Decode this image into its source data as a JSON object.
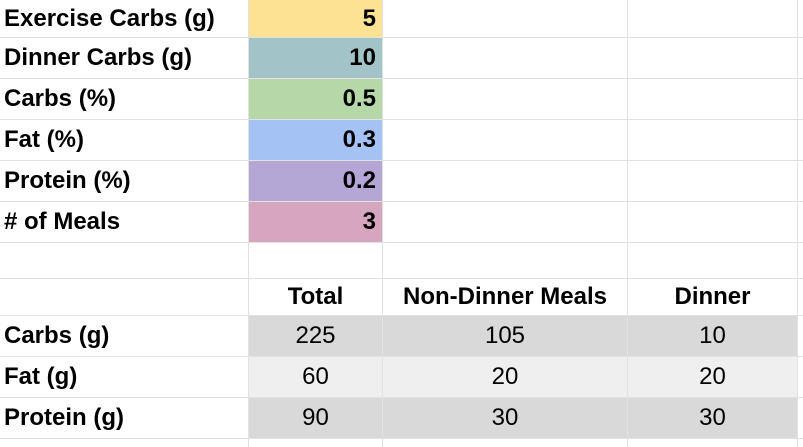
{
  "params": [
    {
      "label": "Exercise Carbs (g)",
      "value": "5",
      "color": "#fde293"
    },
    {
      "label": "Dinner Carbs (g)",
      "value": "10",
      "color": "#a2c4c9"
    },
    {
      "label": "Carbs (%)",
      "value": "0.5",
      "color": "#b6d7a8"
    },
    {
      "label": "Fat (%)",
      "value": "0.3",
      "color": "#a4c2f4"
    },
    {
      "label": "Protein (%)",
      "value": "0.2",
      "color": "#b4a7d6"
    },
    {
      "label": "# of Meals",
      "value": "3",
      "color": "#d5a6bd"
    }
  ],
  "table": {
    "headers": [
      "Total",
      "Non-Dinner Meals",
      "Dinner"
    ],
    "rows": [
      {
        "label": "Carbs (g)",
        "values": [
          "225",
          "105",
          "10"
        ],
        "fill": "#d9d9d9"
      },
      {
        "label": "Fat (g)",
        "values": [
          "60",
          "20",
          "20"
        ],
        "fill": "#efefef"
      },
      {
        "label": "Protein (g)",
        "values": [
          "90",
          "30",
          "30"
        ],
        "fill": "#d9d9d9"
      }
    ]
  }
}
